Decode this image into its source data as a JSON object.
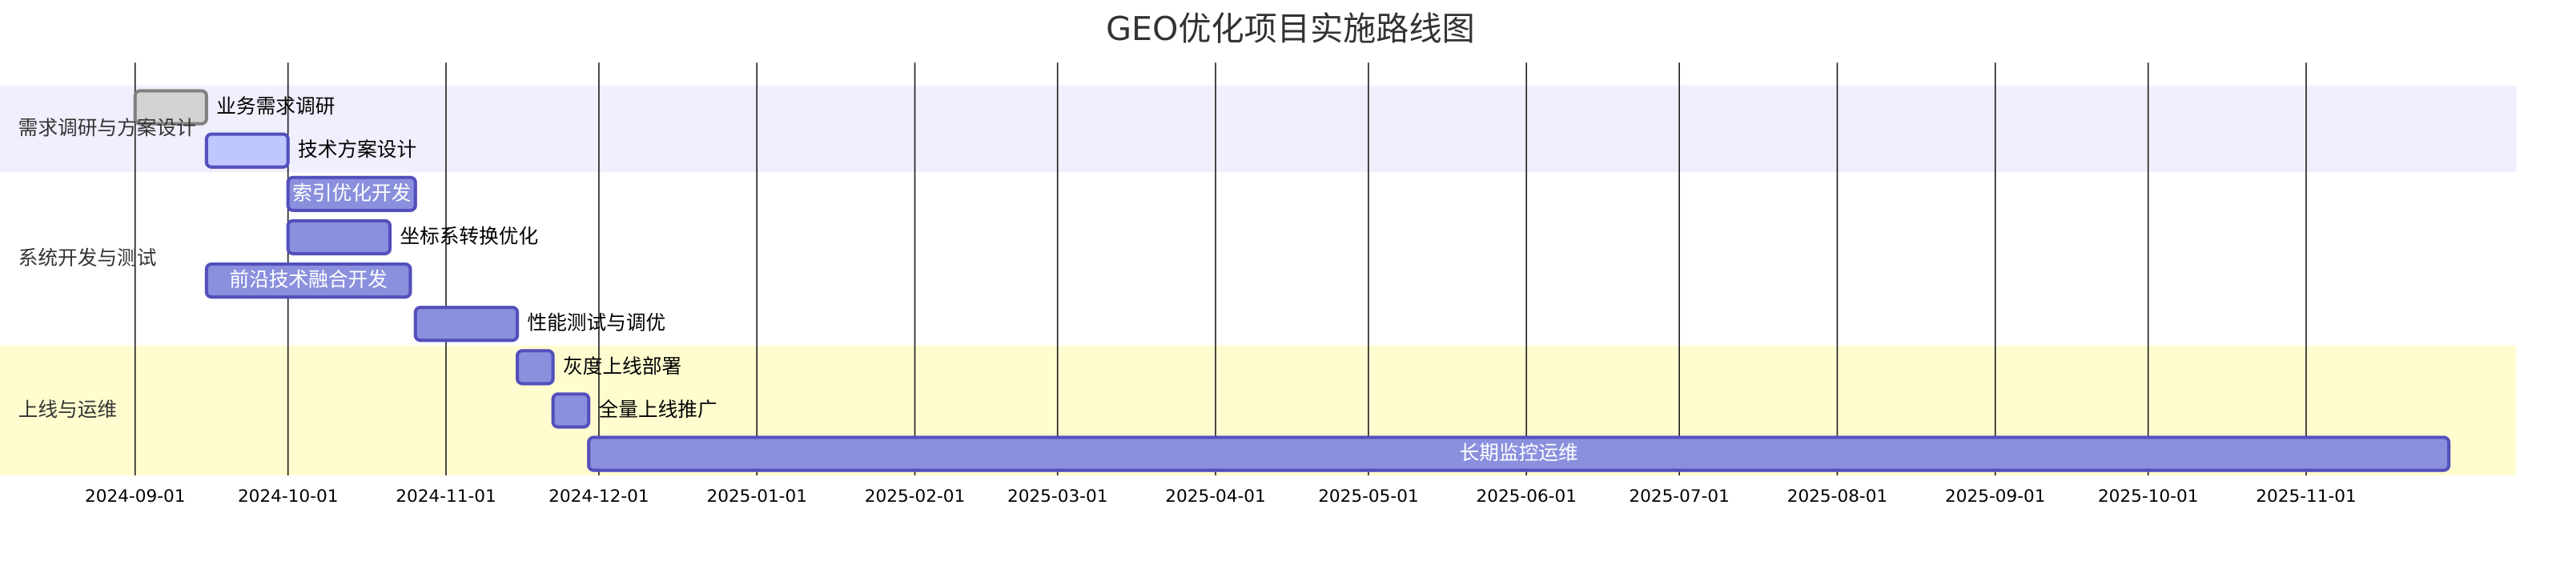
{
  "chart_data": {
    "type": "gantt",
    "title": "GEO优化项目实施路线图",
    "xlim": [
      "2024-09-01",
      "2025-11-29"
    ],
    "xticks": [
      "2024-09-01",
      "2024-10-01",
      "2024-11-01",
      "2024-12-01",
      "2025-01-01",
      "2025-02-01",
      "2025-03-01",
      "2025-04-01",
      "2025-05-01",
      "2025-06-01",
      "2025-07-01",
      "2025-08-01",
      "2025-09-01",
      "2025-10-01",
      "2025-11-01"
    ],
    "grid": true,
    "sections": [
      {
        "name": "需求调研与方案设计",
        "color": "#efeffd",
        "tasks": [
          {
            "name": "业务需求调研",
            "start": "2024-09-01",
            "end": "2024-09-15",
            "color": "#d3d3d3",
            "stroke": "#808080"
          },
          {
            "name": "技术方案设计",
            "start": "2024-09-15",
            "end": "2024-10-01",
            "color": "#bfc7ff",
            "stroke": "#534fbc"
          }
        ]
      },
      {
        "name": "系统开发与测试",
        "color": "#ffffff",
        "tasks": [
          {
            "name": "索引优化开发",
            "start": "2024-10-01",
            "end": "2024-10-26",
            "color": "#8a90dd",
            "stroke": "#534fbc"
          },
          {
            "name": "坐标系转换优化",
            "start": "2024-10-01",
            "end": "2024-10-21",
            "color": "#8a90dd",
            "stroke": "#534fbc"
          },
          {
            "name": "前沿技术融合开发",
            "start": "2024-09-15",
            "end": "2024-10-25",
            "color": "#8a90dd",
            "stroke": "#534fbc"
          },
          {
            "name": "性能测试与调优",
            "start": "2024-10-26",
            "end": "2024-11-15",
            "color": "#8a90dd",
            "stroke": "#534fbc"
          }
        ]
      },
      {
        "name": "上线与运维",
        "color": "#fffdd0",
        "tasks": [
          {
            "name": "灰度上线部署",
            "start": "2024-11-15",
            "end": "2024-11-22",
            "color": "#8a90dd",
            "stroke": "#534fbc"
          },
          {
            "name": "全量上线推广",
            "start": "2024-11-22",
            "end": "2024-11-29",
            "color": "#8a90dd",
            "stroke": "#534fbc"
          },
          {
            "name": "长期监控运维",
            "start": "2024-11-29",
            "end": "2025-11-29",
            "color": "#8a90dd",
            "stroke": "#534fbc"
          }
        ]
      }
    ]
  }
}
